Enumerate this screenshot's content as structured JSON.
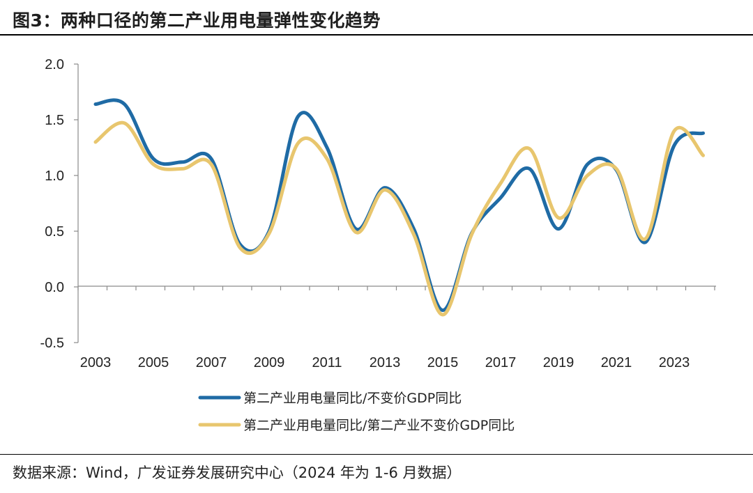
{
  "title": "图3：两种口径的第二产业用电量弹性变化趋势",
  "source": "数据来源：Wind，广发证券发展研究中心（2024 年为 1-6 月数据）",
  "chart_data": {
    "type": "line",
    "title": "图3：两种口径的第二产业用电量弹性变化趋势",
    "x": [
      2003,
      2004,
      2005,
      2006,
      2007,
      2008,
      2009,
      2010,
      2011,
      2012,
      2013,
      2014,
      2015,
      2016,
      2017,
      2018,
      2019,
      2020,
      2021,
      2022,
      2023,
      2024
    ],
    "x_tick_labels": [
      "2003",
      "2005",
      "2007",
      "2009",
      "2011",
      "2013",
      "2015",
      "2017",
      "2019",
      "2021",
      "2023"
    ],
    "ylim": [
      -0.5,
      2.0
    ],
    "y_ticks": [
      -0.5,
      0.0,
      0.5,
      1.0,
      1.5,
      2.0
    ],
    "y_tick_labels": [
      "-0.5",
      "0.0",
      "0.5",
      "1.0",
      "1.5",
      "2.0"
    ],
    "grid": false,
    "legend_position": "bottom",
    "series": [
      {
        "name": "第二产业用电量同比/不变价GDP同比",
        "color": "#1F6BA5",
        "values": [
          1.64,
          1.64,
          1.15,
          1.12,
          1.15,
          0.38,
          0.5,
          1.53,
          1.25,
          0.52,
          0.89,
          0.52,
          -0.21,
          0.48,
          0.8,
          1.06,
          0.52,
          1.1,
          1.05,
          0.4,
          1.27,
          1.38
        ]
      },
      {
        "name": "第二产业用电量同比/第二产业不变价GDP同比",
        "color": "#E8C66E",
        "values": [
          1.3,
          1.47,
          1.1,
          1.06,
          1.1,
          0.35,
          0.48,
          1.29,
          1.15,
          0.49,
          0.87,
          0.47,
          -0.25,
          0.47,
          0.93,
          1.24,
          0.62,
          1.0,
          1.06,
          0.43,
          1.4,
          1.18
        ]
      }
    ]
  }
}
